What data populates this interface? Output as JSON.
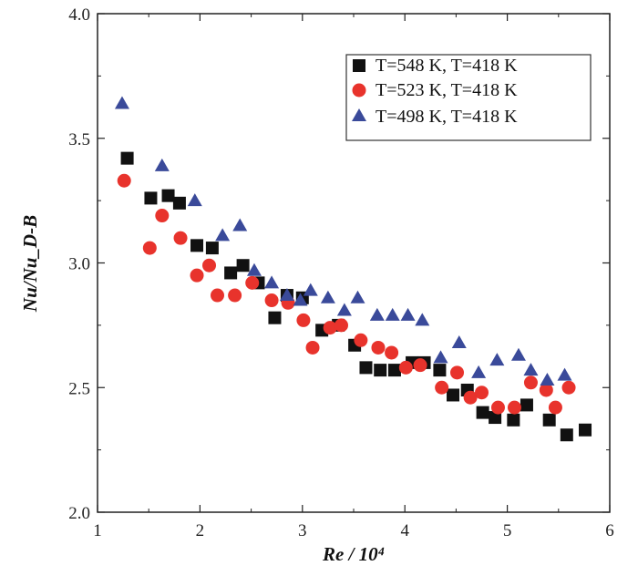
{
  "chart_data": {
    "type": "scatter",
    "title": "",
    "xlabel": "Re / 10⁴",
    "ylabel": "Nu/Nu_D-B",
    "xlim": [
      1,
      6
    ],
    "ylim": [
      2.0,
      4.0
    ],
    "xticks": [
      "1",
      "2",
      "3",
      "4",
      "5",
      "6"
    ],
    "yticks": [
      "2.0",
      "2.5",
      "3.0",
      "3.5",
      "4.0"
    ],
    "grid": false,
    "legend_position": "top-right",
    "series": [
      {
        "name": "T=548 K, T=418 K",
        "marker": "square",
        "color": "#111111",
        "points": [
          [
            1.29,
            3.42
          ],
          [
            1.52,
            3.26
          ],
          [
            1.69,
            3.27
          ],
          [
            1.8,
            3.24
          ],
          [
            1.97,
            3.07
          ],
          [
            2.12,
            3.06
          ],
          [
            2.3,
            2.96
          ],
          [
            2.42,
            2.99
          ],
          [
            2.57,
            2.92
          ],
          [
            2.73,
            2.78
          ],
          [
            2.85,
            2.87
          ],
          [
            3.0,
            2.86
          ],
          [
            3.19,
            2.73
          ],
          [
            3.35,
            2.75
          ],
          [
            3.51,
            2.67
          ],
          [
            3.62,
            2.58
          ],
          [
            3.76,
            2.57
          ],
          [
            3.9,
            2.57
          ],
          [
            4.07,
            2.6
          ],
          [
            4.19,
            2.6
          ],
          [
            4.34,
            2.57
          ],
          [
            4.47,
            2.47
          ],
          [
            4.61,
            2.49
          ],
          [
            4.76,
            2.4
          ],
          [
            4.88,
            2.38
          ],
          [
            5.06,
            2.37
          ],
          [
            5.19,
            2.43
          ],
          [
            5.41,
            2.37
          ],
          [
            5.58,
            2.31
          ],
          [
            5.76,
            2.33
          ]
        ]
      },
      {
        "name": "T=523 K, T=418 K",
        "marker": "circle",
        "color": "#e8332c",
        "points": [
          [
            1.26,
            3.33
          ],
          [
            1.51,
            3.06
          ],
          [
            1.63,
            3.19
          ],
          [
            1.81,
            3.1
          ],
          [
            1.97,
            2.95
          ],
          [
            2.09,
            2.99
          ],
          [
            2.17,
            2.87
          ],
          [
            2.34,
            2.87
          ],
          [
            2.51,
            2.92
          ],
          [
            2.7,
            2.85
          ],
          [
            2.86,
            2.84
          ],
          [
            3.01,
            2.77
          ],
          [
            3.1,
            2.66
          ],
          [
            3.27,
            2.74
          ],
          [
            3.38,
            2.75
          ],
          [
            3.57,
            2.69
          ],
          [
            3.74,
            2.66
          ],
          [
            3.87,
            2.64
          ],
          [
            4.01,
            2.58
          ],
          [
            4.15,
            2.59
          ],
          [
            4.36,
            2.5
          ],
          [
            4.51,
            2.56
          ],
          [
            4.64,
            2.46
          ],
          [
            4.75,
            2.48
          ],
          [
            4.91,
            2.42
          ],
          [
            5.07,
            2.42
          ],
          [
            5.23,
            2.52
          ],
          [
            5.38,
            2.49
          ],
          [
            5.47,
            2.42
          ],
          [
            5.6,
            2.5
          ]
        ]
      },
      {
        "name": "T=498 K, T=418 K",
        "marker": "triangle",
        "color": "#3a4a9a",
        "points": [
          [
            1.24,
            3.64
          ],
          [
            1.63,
            3.39
          ],
          [
            1.95,
            3.25
          ],
          [
            2.22,
            3.11
          ],
          [
            2.39,
            3.15
          ],
          [
            2.53,
            2.97
          ],
          [
            2.7,
            2.92
          ],
          [
            2.85,
            2.87
          ],
          [
            2.98,
            2.85
          ],
          [
            3.08,
            2.89
          ],
          [
            3.25,
            2.86
          ],
          [
            3.41,
            2.81
          ],
          [
            3.54,
            2.86
          ],
          [
            3.73,
            2.79
          ],
          [
            3.88,
            2.79
          ],
          [
            4.03,
            2.79
          ],
          [
            4.17,
            2.77
          ],
          [
            4.35,
            2.62
          ],
          [
            4.53,
            2.68
          ],
          [
            4.72,
            2.56
          ],
          [
            4.9,
            2.61
          ],
          [
            5.11,
            2.63
          ],
          [
            5.23,
            2.57
          ],
          [
            5.39,
            2.53
          ],
          [
            5.56,
            2.55
          ]
        ]
      }
    ]
  }
}
